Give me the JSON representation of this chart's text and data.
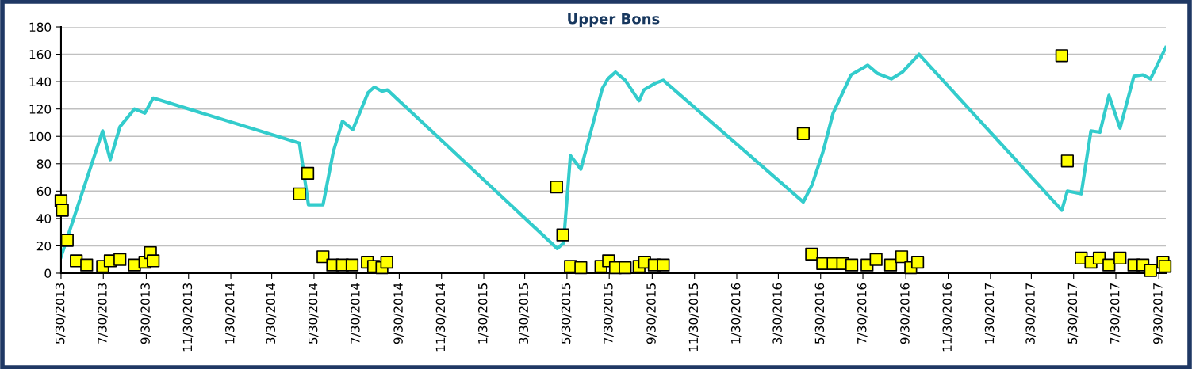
{
  "chart_data": {
    "type": "line",
    "title": "Upper Bons",
    "grid": "y",
    "xlim": [
      "2013-05-30",
      "2017-10-10"
    ],
    "ylim": [
      0,
      180
    ],
    "yticks": [
      0,
      20,
      40,
      60,
      80,
      100,
      120,
      140,
      160,
      180
    ],
    "xticks": [
      {
        "value": "2013-05-30",
        "label": "5/30/2013"
      },
      {
        "value": "2013-07-30",
        "label": "7/30/2013"
      },
      {
        "value": "2013-09-30",
        "label": "9/30/2013"
      },
      {
        "value": "2013-11-30",
        "label": "11/30/2013"
      },
      {
        "value": "2014-01-30",
        "label": "1/30/2014"
      },
      {
        "value": "2014-03-30",
        "label": "3/30/2014"
      },
      {
        "value": "2014-05-30",
        "label": "5/30/2014"
      },
      {
        "value": "2014-07-30",
        "label": "7/30/2014"
      },
      {
        "value": "2014-09-30",
        "label": "9/30/2014"
      },
      {
        "value": "2014-11-30",
        "label": "11/30/2014"
      },
      {
        "value": "2015-01-30",
        "label": "1/30/2015"
      },
      {
        "value": "2015-03-30",
        "label": "3/30/2015"
      },
      {
        "value": "2015-05-30",
        "label": "5/30/2015"
      },
      {
        "value": "2015-07-30",
        "label": "7/30/2015"
      },
      {
        "value": "2015-09-30",
        "label": "9/30/2015"
      },
      {
        "value": "2015-11-30",
        "label": "11/30/2015"
      },
      {
        "value": "2016-01-30",
        "label": "1/30/2016"
      },
      {
        "value": "2016-03-30",
        "label": "3/30/2016"
      },
      {
        "value": "2016-05-30",
        "label": "5/30/2016"
      },
      {
        "value": "2016-07-30",
        "label": "7/30/2016"
      },
      {
        "value": "2016-09-30",
        "label": "9/30/2016"
      },
      {
        "value": "2016-11-30",
        "label": "11/30/2016"
      },
      {
        "value": "2017-01-30",
        "label": "1/30/2017"
      },
      {
        "value": "2017-03-30",
        "label": "3/30/2017"
      },
      {
        "value": "2017-05-30",
        "label": "5/30/2017"
      },
      {
        "value": "2017-07-30",
        "label": "7/30/2017"
      },
      {
        "value": "2017-09-30",
        "label": "9/30/2017"
      }
    ],
    "series": [
      {
        "color": "#33cccc",
        "marker": "none",
        "line_style": "solid",
        "x": [
          "2013-05-30",
          "2013-07-29",
          "2013-08-09",
          "2013-08-23",
          "2013-09-13",
          "2013-09-28",
          "2013-10-10",
          "2014-05-09",
          "2014-05-22",
          "2014-06-12",
          "2014-06-27",
          "2014-07-10",
          "2014-07-25",
          "2014-08-16",
          "2014-08-25",
          "2014-09-05",
          "2014-09-13",
          "2015-05-16",
          "2015-05-25",
          "2015-06-04",
          "2015-06-19",
          "2015-07-20",
          "2015-07-28",
          "2015-08-08",
          "2015-08-22",
          "2015-09-11",
          "2015-09-18",
          "2015-10-05",
          "2015-10-16",
          "2016-05-05",
          "2016-05-18",
          "2016-06-02",
          "2016-06-17",
          "2016-07-13",
          "2016-08-06",
          "2016-08-20",
          "2016-09-09",
          "2016-09-25",
          "2016-10-19",
          "2017-05-13",
          "2017-05-21",
          "2017-06-10",
          "2017-06-24",
          "2017-07-07",
          "2017-07-20",
          "2017-08-05",
          "2017-08-25",
          "2017-09-07",
          "2017-09-18",
          "2017-10-10"
        ],
        "values": [
          12,
          104,
          83,
          107,
          120,
          117,
          128,
          95,
          50,
          50,
          89,
          111,
          105,
          132,
          136,
          133,
          134,
          18,
          22,
          86,
          76,
          135,
          142,
          147,
          141,
          126,
          134,
          139,
          141,
          52,
          65,
          88,
          117,
          145,
          152,
          146,
          142,
          147,
          160,
          46,
          60,
          58,
          104,
          103,
          130,
          106,
          144,
          145,
          142,
          165
        ]
      },
      {
        "type": "scatter",
        "color": "#ffff00",
        "marker": "square",
        "x": [
          "2013-05-30",
          "2013-06-01",
          "2013-06-08",
          "2013-06-21",
          "2013-07-06",
          "2013-07-29",
          "2013-08-09",
          "2013-08-23",
          "2013-09-13",
          "2013-09-28",
          "2013-10-06",
          "2013-10-10",
          "2014-05-09",
          "2014-05-21",
          "2014-06-12",
          "2014-06-26",
          "2014-07-10",
          "2014-07-24",
          "2014-08-15",
          "2014-08-24",
          "2014-09-05",
          "2014-09-12",
          "2015-05-15",
          "2015-05-24",
          "2015-06-04",
          "2015-06-19",
          "2015-07-18",
          "2015-07-29",
          "2015-08-08",
          "2015-08-22",
          "2015-09-11",
          "2015-09-19",
          "2015-10-03",
          "2015-10-16",
          "2016-05-05",
          "2016-05-17",
          "2016-06-02",
          "2016-06-17",
          "2016-07-01",
          "2016-07-14",
          "2016-08-05",
          "2016-08-18",
          "2016-09-08",
          "2016-09-24",
          "2016-10-07",
          "2016-10-17",
          "2017-05-13",
          "2017-05-21",
          "2017-06-10",
          "2017-06-24",
          "2017-07-06",
          "2017-07-20",
          "2017-08-05",
          "2017-08-25",
          "2017-09-07",
          "2017-09-18",
          "2017-10-06",
          "2017-10-09"
        ],
        "values": [
          53,
          46,
          24,
          9,
          6,
          5,
          9,
          10,
          6,
          8,
          15,
          9,
          58,
          73,
          12,
          6,
          6,
          6,
          8,
          5,
          4,
          8,
          63,
          28,
          5,
          4,
          5,
          9,
          4,
          4,
          5,
          8,
          6,
          6,
          102,
          14,
          7,
          7,
          7,
          6,
          6,
          10,
          6,
          12,
          4,
          8,
          159,
          82,
          11,
          8,
          11,
          6,
          11,
          6,
          6,
          2,
          8,
          5
        ]
      }
    ]
  }
}
